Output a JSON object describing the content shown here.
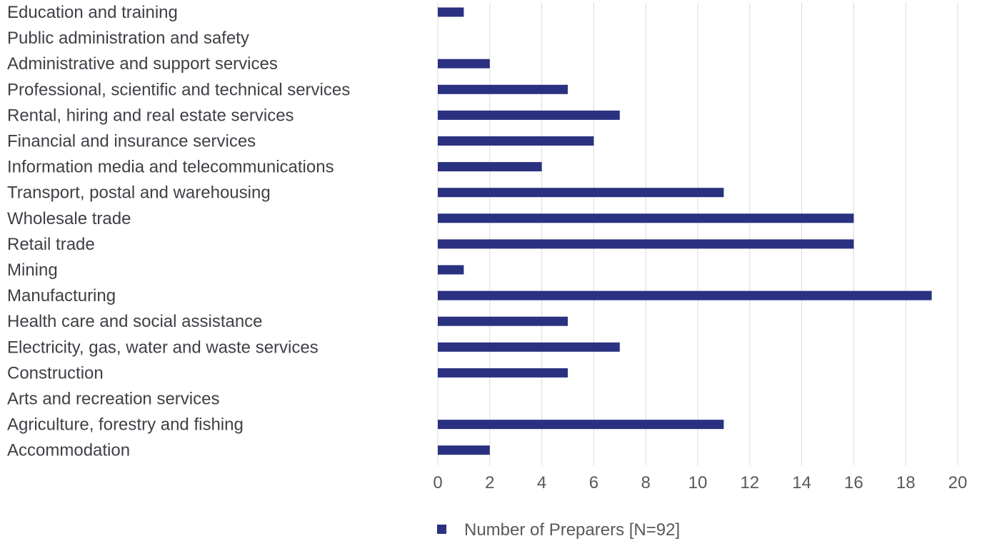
{
  "chart_data": {
    "type": "bar",
    "orientation": "horizontal",
    "categories": [
      "Education and training",
      "Public administration and safety",
      "Administrative and support services",
      "Professional, scientific and technical services",
      "Rental, hiring and real estate services",
      "Financial and insurance services",
      "Information media and telecommunications",
      "Transport, postal and warehousing",
      "Wholesale trade",
      "Retail trade",
      "Mining",
      "Manufacturing",
      "Health care and social assistance",
      "Electricity, gas, water and waste services",
      "Construction",
      "Arts and recreation services",
      "Agriculture, forestry and fishing",
      "Accommodation"
    ],
    "series": [
      {
        "name": "Number of Preparers [N=92]",
        "values": [
          1,
          0,
          2,
          5,
          7,
          6,
          4,
          11,
          16,
          16,
          1,
          19,
          5,
          7,
          5,
          0,
          11,
          2
        ],
        "color": "#2a3180"
      }
    ],
    "xlim": [
      0,
      20
    ],
    "xticks": [
      "0",
      "2",
      "4",
      "6",
      "8",
      "10",
      "12",
      "14",
      "16",
      "18",
      "20"
    ],
    "grid": "vertical",
    "legend_position": "bottom",
    "title": "",
    "xlabel": "",
    "ylabel": ""
  }
}
